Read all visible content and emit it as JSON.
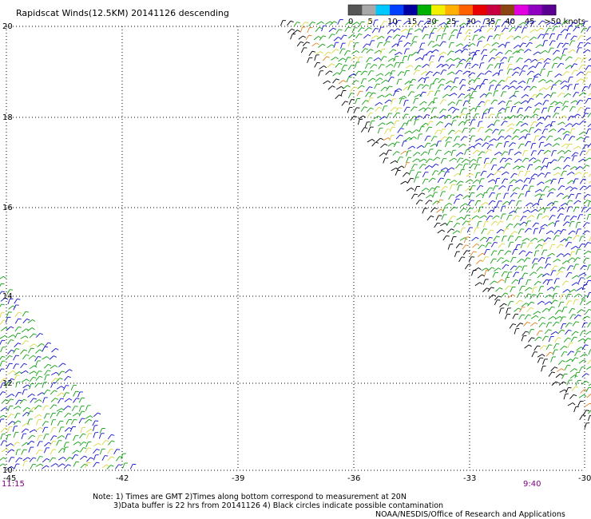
{
  "header": {
    "title": "Rapidscat Winds(12.5KM) 20141126 descending"
  },
  "legend": {
    "colors": [
      "#555555",
      "#a8a8a8",
      "#00c8ff",
      "#0040ff",
      "#0000a0",
      "#00b000",
      "#f0f000",
      "#ffb000",
      "#ff6000",
      "#e80000",
      "#c80040",
      "#8b4513",
      "#e000e0",
      "#9000c0",
      "#5a0090"
    ],
    "labels": [
      "0",
      "5",
      "10",
      "15",
      "20",
      "25",
      "30",
      "35",
      "40",
      "45",
      ">50 knots"
    ]
  },
  "axes": {
    "x_ticks": [
      "-45",
      "-42",
      "-39",
      "-36",
      "-33",
      "-30"
    ],
    "y_ticks": [
      "20",
      "18",
      "16",
      "14",
      "12",
      "10"
    ]
  },
  "times": {
    "left": "11:15",
    "right": "9:40"
  },
  "notes": {
    "line1": "Note: 1) Times are GMT 2)Times along bottom correspond to measurement at 20N",
    "line2": "3)Data buffer is 22 hrs from 20141126 4) Black circles indicate possible contamination",
    "credit": "NOAA/NESDIS/Office of Research and Applications"
  },
  "colors": {
    "blue": "#1010d0",
    "green": "#10a010",
    "yellow": "#d8d840",
    "orange": "#e08020",
    "black": "#000000",
    "time": "#800080"
  }
}
